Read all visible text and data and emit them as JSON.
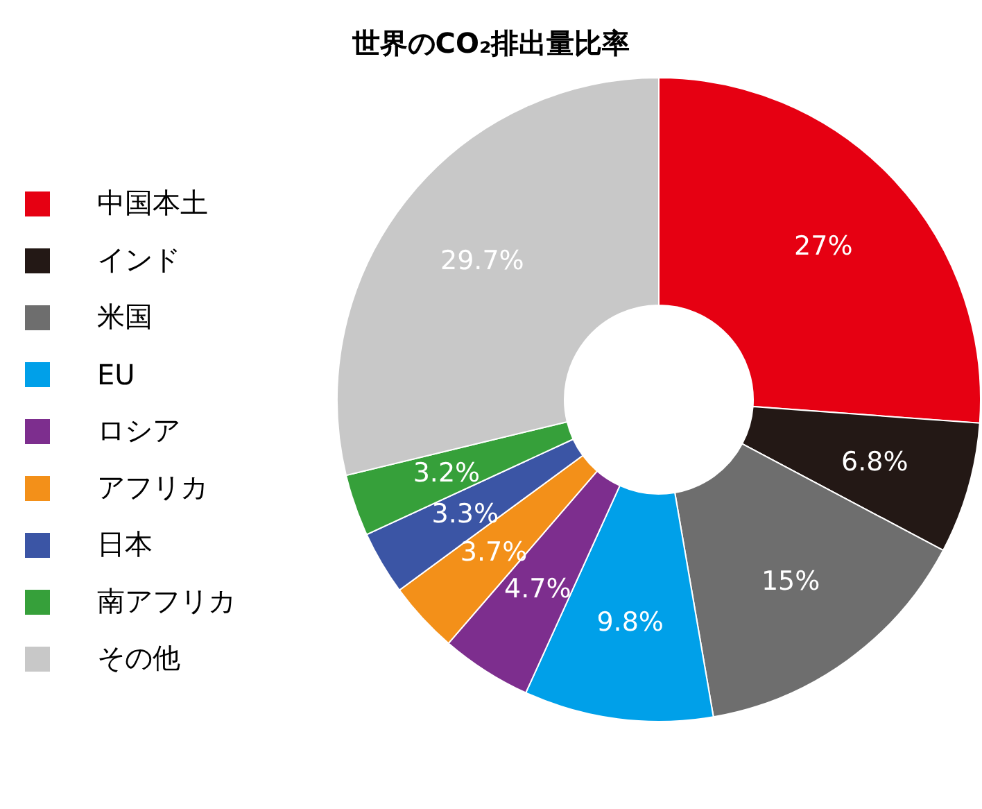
{
  "chart_data": {
    "type": "donut",
    "title": "世界のCO₂排出量比率",
    "categories": [
      "中国本土",
      "インド",
      "米国",
      "EU",
      "ロシア",
      "アフリカ",
      "日本",
      "南アフリカ",
      "その他"
    ],
    "values": [
      27,
      6.8,
      15,
      9.8,
      4.7,
      3.7,
      3.3,
      3.2,
      29.7
    ],
    "colors": [
      "#e60012",
      "#231815",
      "#6e6e6e",
      "#00a0e9",
      "#7d2e8e",
      "#f39019",
      "#3b55a5",
      "#36a03a",
      "#c8c8c8"
    ],
    "value_labels": [
      "27%",
      "6.8%",
      "15%",
      "9.8%",
      "4.7%",
      "3.7%",
      "3.3%",
      "3.2%",
      "29.7%"
    ],
    "legend": "left"
  }
}
